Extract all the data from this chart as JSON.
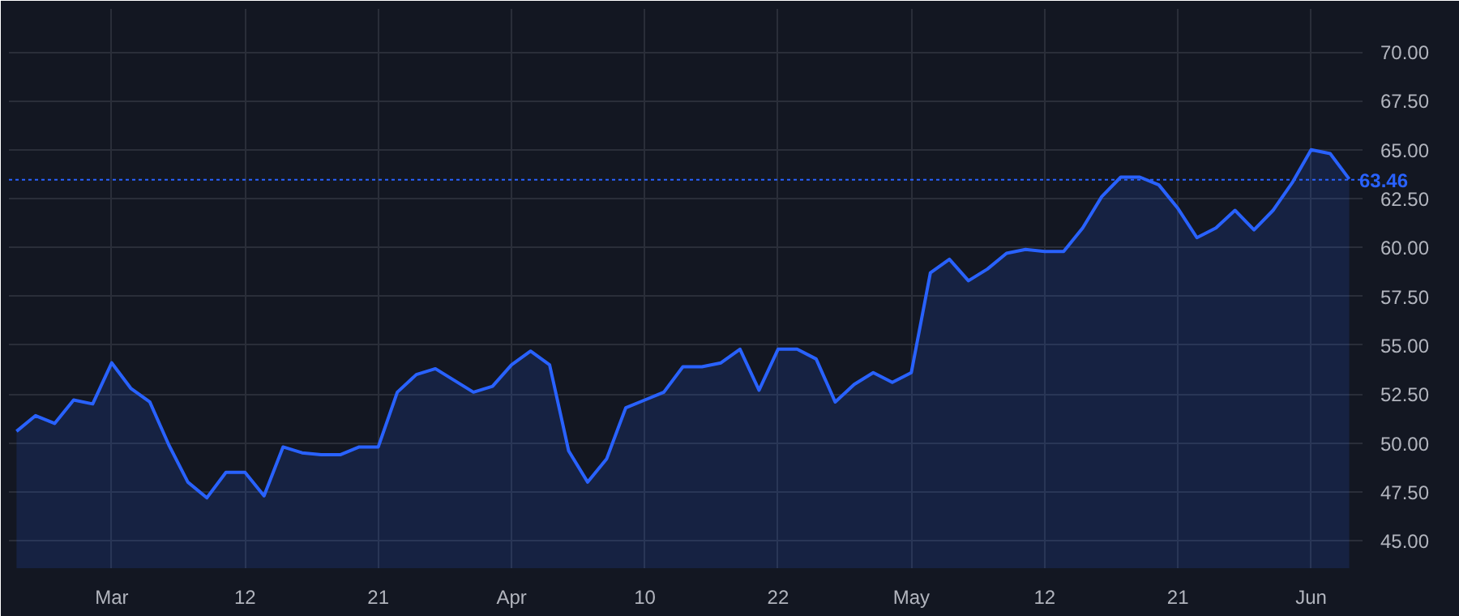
{
  "chart_data": {
    "type": "area",
    "categories": [
      null,
      null,
      null,
      null,
      null,
      "Mar",
      null,
      null,
      null,
      null,
      null,
      null,
      "12",
      null,
      null,
      null,
      null,
      null,
      null,
      "21",
      null,
      null,
      null,
      null,
      null,
      null,
      "Apr",
      null,
      null,
      null,
      null,
      null,
      null,
      "10",
      null,
      null,
      null,
      null,
      null,
      null,
      "22",
      null,
      null,
      null,
      null,
      null,
      null,
      "May",
      null,
      null,
      null,
      null,
      null,
      null,
      "12",
      null,
      null,
      null,
      null,
      null,
      null,
      "21",
      null,
      null,
      null,
      null,
      null,
      null,
      "Jun",
      null,
      null
    ],
    "series": [
      {
        "color": "#2962ff",
        "values": [
          50.6,
          51.4,
          51.0,
          52.2,
          52.0,
          54.1,
          52.8,
          52.1,
          49.9,
          48.0,
          47.2,
          48.5,
          48.5,
          47.3,
          49.8,
          49.5,
          49.4,
          49.4,
          49.8,
          49.8,
          52.6,
          53.5,
          53.8,
          53.2,
          52.6,
          52.9,
          54.0,
          54.7,
          54.0,
          49.6,
          48.0,
          49.2,
          51.8,
          52.2,
          52.6,
          53.9,
          53.9,
          54.1,
          54.8,
          52.7,
          54.8,
          54.8,
          54.3,
          52.1,
          53.0,
          53.6,
          53.1,
          53.6,
          58.7,
          59.4,
          58.3,
          58.9,
          59.7,
          59.9,
          59.8,
          59.8,
          61.0,
          62.6,
          63.6,
          63.6,
          63.2,
          62.0,
          60.5,
          61.0,
          61.9,
          60.9,
          61.9,
          63.3,
          65.0,
          64.8,
          63.5
        ]
      }
    ],
    "ylim": [
      43.6,
      72.2
    ],
    "yticks": [
      {
        "value": 45,
        "label": "45.00"
      },
      {
        "value": 47.5,
        "label": "47.50"
      },
      {
        "value": 50,
        "label": "50.00"
      },
      {
        "value": 52.5,
        "label": "52.50"
      },
      {
        "value": 55,
        "label": "55.00"
      },
      {
        "value": 57.5,
        "label": "57.50"
      },
      {
        "value": 60,
        "label": "60.00"
      },
      {
        "value": 62.5,
        "label": "62.50"
      },
      {
        "value": 65,
        "label": "65.00"
      },
      {
        "value": 67.5,
        "label": "67.50"
      },
      {
        "value": 70,
        "label": "70.00"
      }
    ],
    "grid": true,
    "ref_lines": [
      {
        "axis": "y",
        "value": 63.46,
        "label": "63.46",
        "color": "#2962ff",
        "line_style": "dotted"
      }
    ]
  }
}
